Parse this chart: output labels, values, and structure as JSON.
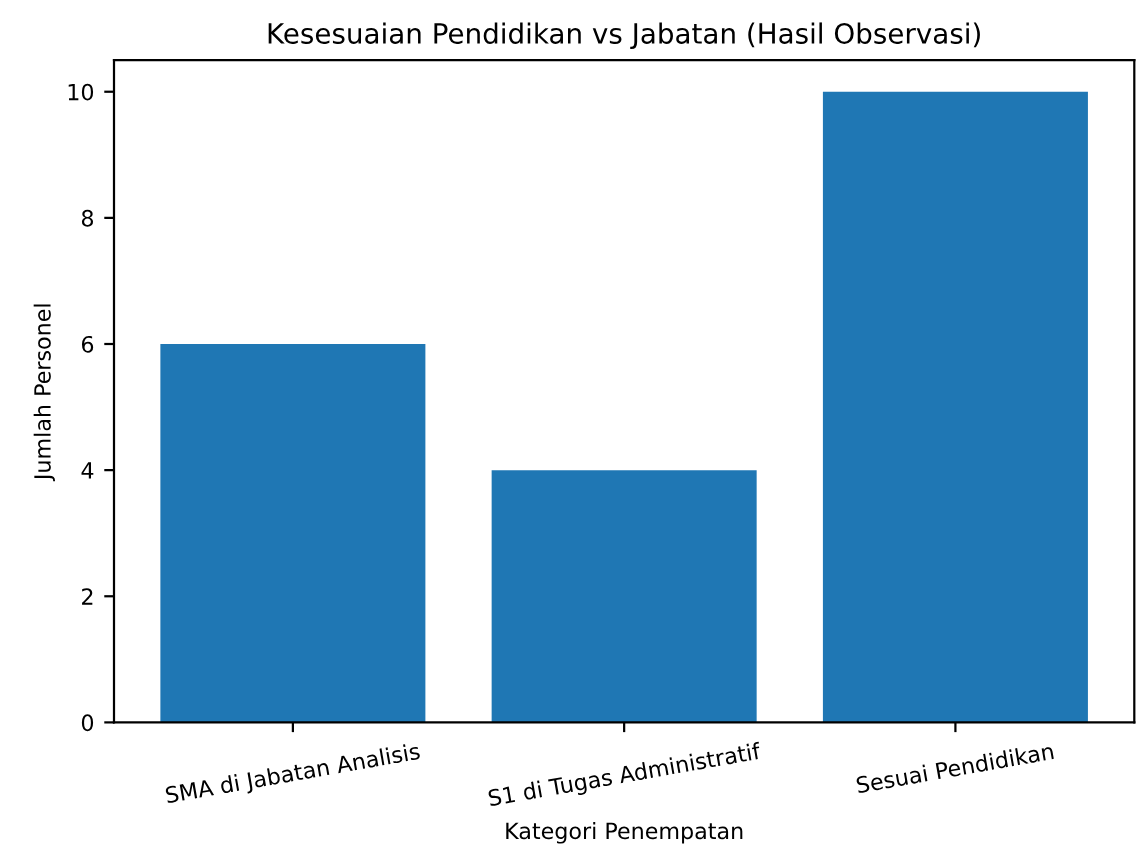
{
  "chart_data": {
    "type": "bar",
    "title": "Kesesuaian Pendidikan vs Jabatan (Hasil Observasi)",
    "xlabel": "Kategori Penempatan",
    "ylabel": "Jumlah Personel",
    "categories": [
      "SMA di Jabatan Analisis",
      "S1 di Tugas Administratif",
      "Sesuai Pendidikan"
    ],
    "values": [
      6,
      4,
      10
    ],
    "color": "#1f77b4",
    "ylim": [
      0,
      10.5
    ],
    "yticks": [
      0,
      2,
      4,
      6,
      8,
      10
    ],
    "grid": false
  }
}
